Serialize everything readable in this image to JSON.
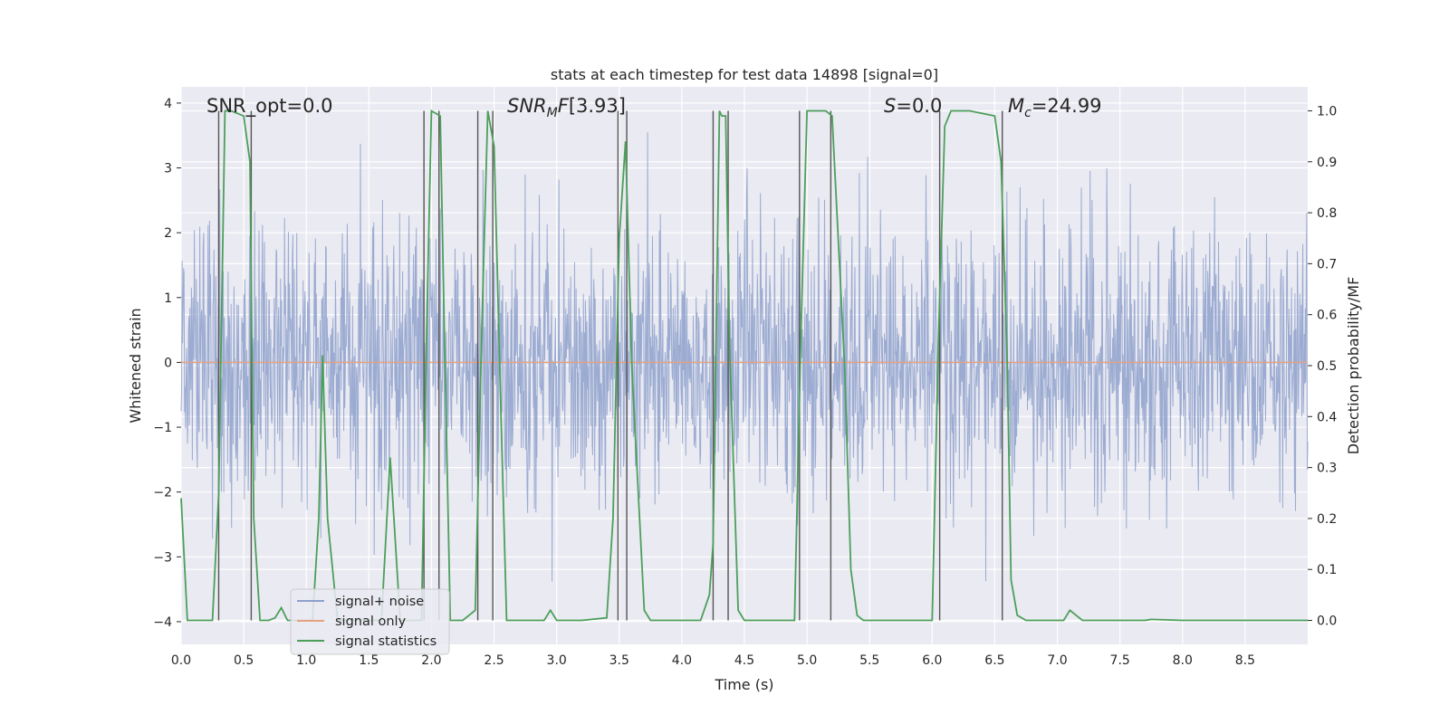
{
  "chart_data": {
    "type": "line",
    "title": "stats at each timestep for test data 14898 [signal=0]",
    "xlabel": "Time (s)",
    "ylabel": "Whitened strain",
    "y2label": "Detection probability/MF",
    "xlim": [
      0.0,
      9.0
    ],
    "ylim": [
      -4.35,
      4.25
    ],
    "y2lim": [
      -0.047,
      1.047
    ],
    "x_ticks": [
      0.0,
      0.5,
      1.0,
      1.5,
      2.0,
      2.5,
      3.0,
      3.5,
      4.0,
      4.5,
      5.0,
      5.5,
      6.0,
      6.5,
      7.0,
      7.5,
      8.0,
      8.5
    ],
    "x_tick_labels": [
      "0.0",
      "0.5",
      "1.0",
      "1.5",
      "2.0",
      "2.5",
      "3.0",
      "3.5",
      "4.0",
      "4.5",
      "5.0",
      "5.5",
      "6.0",
      "6.5",
      "7.0",
      "7.5",
      "8.0",
      "8.5"
    ],
    "y_ticks": [
      -4,
      -3,
      -2,
      -1,
      0,
      1,
      2,
      3,
      4
    ],
    "y_tick_labels": [
      "−4",
      "−3",
      "−2",
      "−1",
      "0",
      "1",
      "2",
      "3",
      "4"
    ],
    "y2_ticks": [
      0.0,
      0.1,
      0.2,
      0.3,
      0.4,
      0.5,
      0.6,
      0.7,
      0.8,
      0.9,
      1.0
    ],
    "y2_tick_labels": [
      "0.0",
      "0.1",
      "0.2",
      "0.3",
      "0.4",
      "0.5",
      "0.6",
      "0.7",
      "0.8",
      "0.9",
      "1.0"
    ],
    "series": [
      {
        "name": "signal+ noise",
        "color": "#8da0cb",
        "note": "dense whitened noise, approx. gaussian, |y| mostly < 3.5"
      },
      {
        "name": "signal only",
        "color": "#e5a283",
        "values_constant": 0
      },
      {
        "name": "signal statistics",
        "color": "#4c9f5a",
        "axis": "right",
        "x": [
          0.0,
          0.05,
          0.1,
          0.25,
          0.3,
          0.35,
          0.4,
          0.5,
          0.55,
          0.58,
          0.63,
          0.7,
          0.75,
          0.8,
          0.85,
          0.9,
          1.0,
          1.05,
          1.1,
          1.13,
          1.17,
          1.25,
          1.35,
          1.45,
          1.55,
          1.6,
          1.67,
          1.75,
          1.85,
          1.92,
          1.96,
          2.0,
          2.07,
          2.1,
          2.15,
          2.25,
          2.35,
          2.4,
          2.45,
          2.5,
          2.55,
          2.6,
          2.8,
          2.9,
          2.95,
          3.0,
          3.2,
          3.4,
          3.45,
          3.5,
          3.55,
          3.6,
          3.7,
          3.75,
          3.85,
          4.0,
          4.15,
          4.22,
          4.25,
          4.3,
          4.32,
          4.35,
          4.38,
          4.45,
          4.5,
          4.6,
          4.7,
          4.8,
          4.9,
          4.95,
          5.0,
          5.15,
          5.2,
          5.3,
          5.35,
          5.4,
          5.45,
          5.5,
          5.7,
          5.8,
          6.0,
          6.05,
          6.1,
          6.15,
          6.3,
          6.5,
          6.55,
          6.6,
          6.63,
          6.68,
          6.75,
          6.9,
          6.95,
          7.05,
          7.1,
          7.2,
          7.5,
          7.6,
          7.7,
          7.75,
          8.0,
          8.5,
          9.0
        ],
        "values": [
          0.24,
          0.0,
          0.0,
          0.0,
          0.25,
          1.0,
          1.0,
          0.99,
          0.9,
          0.2,
          0.0,
          0.0,
          0.005,
          0.025,
          0.0,
          0.0,
          0.0,
          0.0,
          0.2,
          0.52,
          0.2,
          0.0,
          0.0,
          0.0,
          0.0,
          0.0,
          0.32,
          0.0,
          0.0,
          0.0,
          0.55,
          1.0,
          0.99,
          0.6,
          0.0,
          0.0,
          0.02,
          0.55,
          1.0,
          0.93,
          0.45,
          0.0,
          0.0,
          0.0,
          0.02,
          0.0,
          0.0,
          0.005,
          0.2,
          0.75,
          0.94,
          0.5,
          0.02,
          0.0,
          0.0,
          0.0,
          0.0,
          0.05,
          0.15,
          1.0,
          0.99,
          0.99,
          0.55,
          0.02,
          0.0,
          0.0,
          0.0,
          0.0,
          0.0,
          0.55,
          1.0,
          1.0,
          0.99,
          0.5,
          0.1,
          0.01,
          0.0,
          0.0,
          0.0,
          0.0,
          0.0,
          0.55,
          0.97,
          1.0,
          1.0,
          0.99,
          0.9,
          0.5,
          0.08,
          0.01,
          0.0,
          0.0,
          0.0,
          0.0,
          0.02,
          0.0,
          0.0,
          0.0,
          0.0,
          0.002,
          0.0,
          0.0,
          0.0
        ]
      }
    ],
    "vlines": [
      0.3,
      0.56,
      1.94,
      2.06,
      2.37,
      2.49,
      3.49,
      3.56,
      4.25,
      4.37,
      4.94,
      5.19,
      6.06,
      6.56
    ],
    "vlines_color": "#555555",
    "annotations": [
      {
        "key": "snr_opt",
        "text": "SNR_opt=0.0",
        "x": 0.2
      },
      {
        "key": "snr_mf",
        "text": "[3.93]",
        "x": 2.6
      },
      {
        "key": "s",
        "text": "=0.0",
        "x": 5.6
      },
      {
        "key": "mc",
        "text": "=24.99",
        "x": 6.6
      }
    ],
    "legend": {
      "location": "lower-left",
      "entries": [
        "signal+ noise",
        "signal only",
        "signal statistics"
      ]
    },
    "grid": true
  }
}
